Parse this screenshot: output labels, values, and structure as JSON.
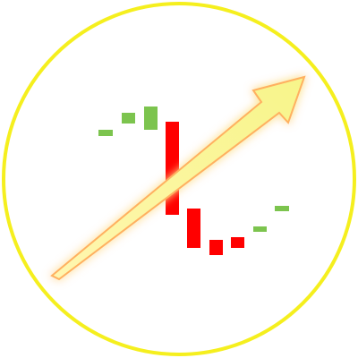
{
  "icon": {
    "name": "trend-reversal-arrow-icon",
    "colors": {
      "ring": "#f5ef1e",
      "background": "#ffffff",
      "up_candle": "#7cc44e",
      "down_candle": "#ff0000",
      "arrow_fill": "#f7f58a",
      "arrow_glow": "#ffb060"
    },
    "candles": [
      {
        "name": "candle-1",
        "direction": "up",
        "size": "small"
      },
      {
        "name": "candle-2",
        "direction": "up",
        "size": "small"
      },
      {
        "name": "candle-3",
        "direction": "up",
        "size": "medium"
      },
      {
        "name": "candle-4",
        "direction": "down",
        "size": "large"
      },
      {
        "name": "candle-5",
        "direction": "down",
        "size": "medium"
      },
      {
        "name": "candle-6",
        "direction": "down",
        "size": "small"
      },
      {
        "name": "candle-7",
        "direction": "down",
        "size": "small"
      },
      {
        "name": "candle-8",
        "direction": "up",
        "size": "small"
      },
      {
        "name": "candle-9",
        "direction": "up",
        "size": "small"
      }
    ]
  }
}
